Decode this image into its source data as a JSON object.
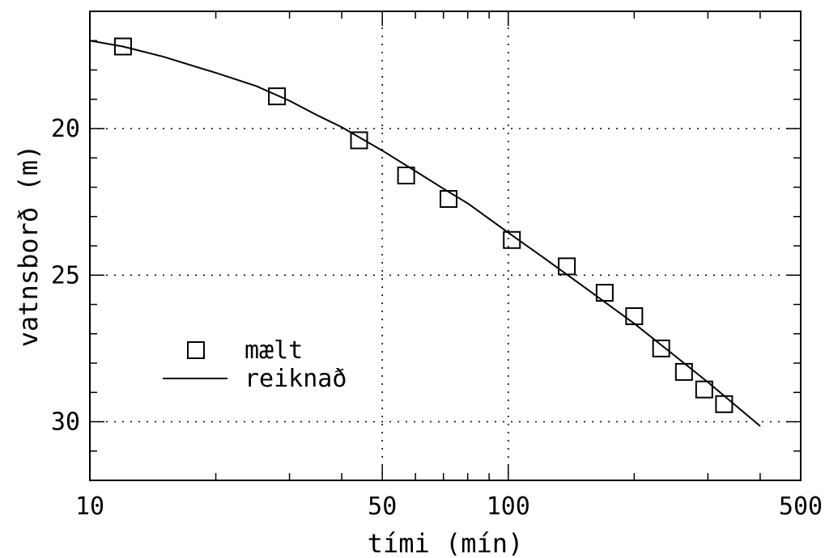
{
  "chart_data": {
    "type": "scatter",
    "xscale": "log",
    "xlabel": "tími (mín)",
    "ylabel": "vatnsborð (m)",
    "xlim": [
      10,
      500
    ],
    "ylim": [
      32,
      16
    ],
    "y_inverted": true,
    "grid": true,
    "x_ticklabels": [
      "10",
      "50",
      "100",
      "500"
    ],
    "x_tick_values": [
      10,
      50,
      100,
      500
    ],
    "y_ticklabels": [
      "20",
      "25",
      "30"
    ],
    "y_tick_values": [
      20,
      25,
      30
    ],
    "legend_position": "lower-left",
    "series": [
      {
        "name": "mælt",
        "kind": "markers",
        "marker": "open-square",
        "x": [
          12,
          28,
          44,
          57,
          72,
          102,
          138,
          170,
          200,
          232,
          263,
          294,
          328
        ],
        "y": [
          17.2,
          18.9,
          20.4,
          21.6,
          22.4,
          23.8,
          24.7,
          25.6,
          26.4,
          27.5,
          28.3,
          28.9,
          29.4
        ]
      },
      {
        "name": "reiknað",
        "kind": "line",
        "x": [
          10,
          12,
          15,
          20,
          25,
          30,
          35,
          40,
          50,
          60,
          70,
          80,
          100,
          120,
          150,
          200,
          250,
          300,
          350,
          400
        ],
        "y": [
          17.0,
          17.2,
          17.55,
          18.1,
          18.55,
          19.05,
          19.55,
          19.95,
          20.75,
          21.45,
          22.05,
          22.55,
          23.55,
          24.35,
          25.35,
          26.65,
          27.75,
          28.65,
          29.45,
          30.15
        ]
      }
    ]
  }
}
